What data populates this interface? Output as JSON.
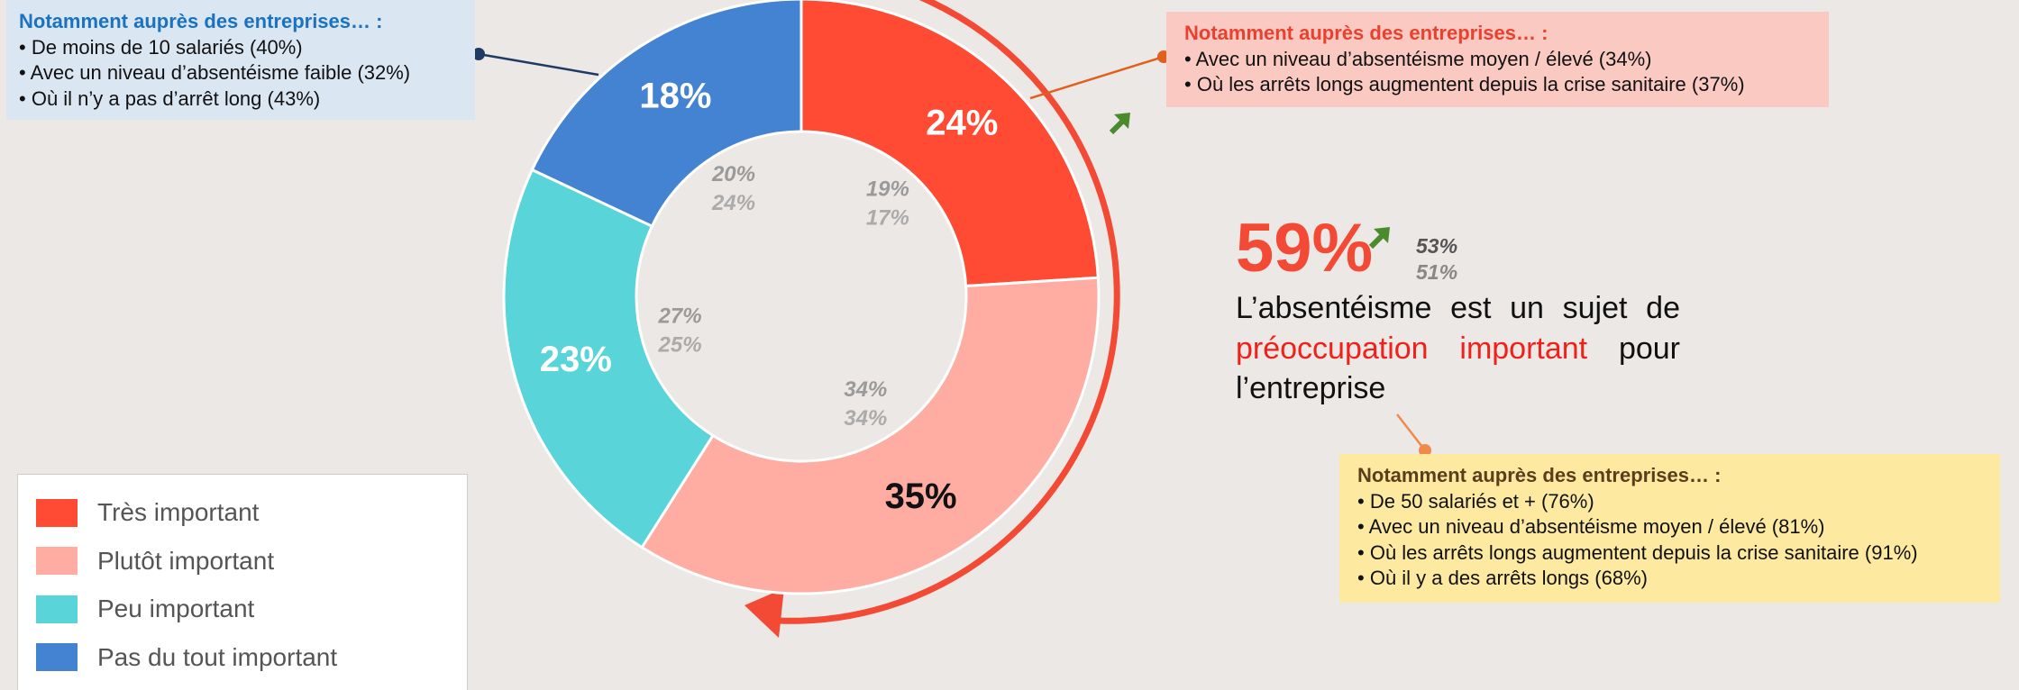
{
  "chart_data": {
    "type": "pie",
    "donut": true,
    "categories": [
      "Très important",
      "Plutôt important",
      "Peu important",
      "Pas du tout important"
    ],
    "values": [
      24,
      35,
      23,
      18
    ],
    "value_labels": [
      "24%",
      "35%",
      "23%",
      "18%"
    ],
    "colors": [
      "#ff4b33",
      "#ffada3",
      "#59d4d9",
      "#4383d1"
    ],
    "label_colors": [
      "#ffffff",
      "#111111",
      "#ffffff",
      "#ffffff"
    ],
    "comparisons": [
      {
        "values": [
          19,
          34,
          27,
          20
        ],
        "value_labels": [
          "19%",
          "34%",
          "27%",
          "20%"
        ]
      },
      {
        "values": [
          17,
          34,
          25,
          24
        ],
        "value_labels": [
          "17%",
          "34%",
          "25%",
          "24%"
        ]
      }
    ],
    "headline": {
      "value": 59,
      "label": "59%",
      "comparisons": [
        {
          "value": 53,
          "label": "53%"
        },
        {
          "value": 51,
          "label": "51%"
        }
      ],
      "lines": [
        [
          {
            "text": "L’absentéisme est un sujet de"
          }
        ],
        [
          {
            "text": "préoccupation important",
            "highlight": true
          },
          {
            "text": "pour"
          }
        ],
        [
          {
            "text": "l’entreprise"
          }
        ]
      ]
    },
    "callouts": [
      {
        "title": "Notamment auprès des entreprises… :",
        "items": [
          "De moins de 10 salariés (40%)",
          "Avec un niveau d’absentéisme faible (32%)",
          "Où il n’y a pas d’arrêt long (43%)"
        ]
      },
      {
        "title": "Notamment auprès des entreprises… :",
        "items": [
          "Avec un niveau d’absentéisme moyen / élevé (34%)",
          "Où les arrêts longs augmentent depuis la crise sanitaire (37%)"
        ]
      },
      {
        "title": "Notamment auprès des entreprises… :",
        "items": [
          "De 50 salariés et + (76%)",
          "Avec un niveau d’absentéisme moyen / élevé (81%)",
          "Où les arrêts longs augmentent depuis la crise sanitaire (91%)",
          "Où il y a des arrêts longs (68%)"
        ]
      }
    ]
  }
}
